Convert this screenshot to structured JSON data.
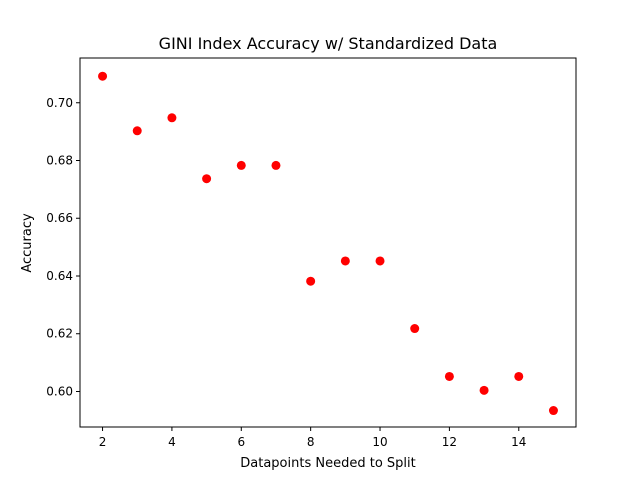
{
  "chart_data": {
    "type": "scatter",
    "title": "GINI Index Accuracy w/ Standardized Data",
    "xlabel": "Datapoints Needed to Split",
    "ylabel": "Accuracy",
    "xlim": [
      1.35,
      15.65
    ],
    "ylim": [
      0.5877,
      0.7155
    ],
    "xticks": [
      2,
      4,
      6,
      8,
      10,
      12,
      14
    ],
    "yticks": [
      0.6,
      0.62,
      0.64,
      0.66,
      0.68,
      0.7
    ],
    "xtick_labels": [
      "2",
      "4",
      "6",
      "8",
      "10",
      "12",
      "14"
    ],
    "ytick_labels": [
      "0.60",
      "0.62",
      "0.64",
      "0.66",
      "0.68",
      "0.70"
    ],
    "grid": false,
    "marker_color": "#ff0000",
    "series": [
      {
        "x": [
          2,
          3,
          4,
          5,
          6,
          7,
          8,
          9,
          10,
          11,
          12,
          13,
          14,
          15
        ],
        "y": [
          0.7092,
          0.6903,
          0.6948,
          0.6737,
          0.6783,
          0.6783,
          0.6382,
          0.6452,
          0.6452,
          0.6218,
          0.6052,
          0.6004,
          0.6052,
          0.5934
        ]
      }
    ]
  }
}
